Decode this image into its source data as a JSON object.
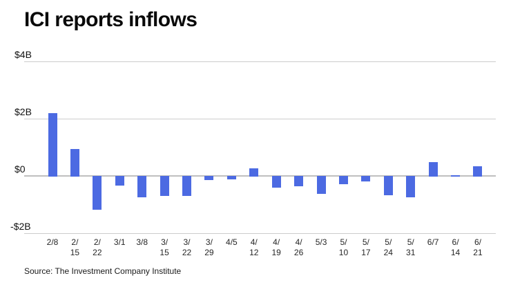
{
  "chart": {
    "title": "ICI reports inflows",
    "source": "Source: The Investment Company Institute",
    "colors": {
      "bar": "#4c6ae2",
      "gridline": "#cccccc",
      "zero_line": "#bfbfbf",
      "title_text": "#0a0a0a",
      "axis_text": "#262626",
      "background": "#ffffff"
    }
  },
  "chart_data": {
    "type": "bar",
    "title": "ICI reports inflows",
    "xlabel": "",
    "ylabel": "",
    "unit": "billions USD",
    "categories": [
      "2/8",
      "2/15",
      "2/22",
      "3/1",
      "3/8",
      "3/15",
      "3/22",
      "3/29",
      "4/5",
      "4/12",
      "4/19",
      "4/26",
      "5/3",
      "5/10",
      "5/17",
      "5/24",
      "5/31",
      "6/7",
      "6/14",
      "6/21"
    ],
    "values": [
      2.2,
      0.93,
      -1.18,
      -0.35,
      -0.74,
      -0.7,
      -0.7,
      -0.15,
      -0.13,
      0.27,
      -0.42,
      -0.36,
      -0.62,
      -0.3,
      -0.2,
      -0.68,
      -0.75,
      0.48,
      0.02,
      0.34
    ],
    "yticks": [
      {
        "value": 4,
        "label": "$4B"
      },
      {
        "value": 2,
        "label": "$2B"
      },
      {
        "value": 0,
        "label": "$0"
      },
      {
        "value": -2,
        "label": "-$2B"
      }
    ],
    "ylim": [
      -2.4,
      4.6
    ],
    "grid": "horizontal",
    "legend": "none",
    "source": "Source: The Investment Company Institute"
  }
}
